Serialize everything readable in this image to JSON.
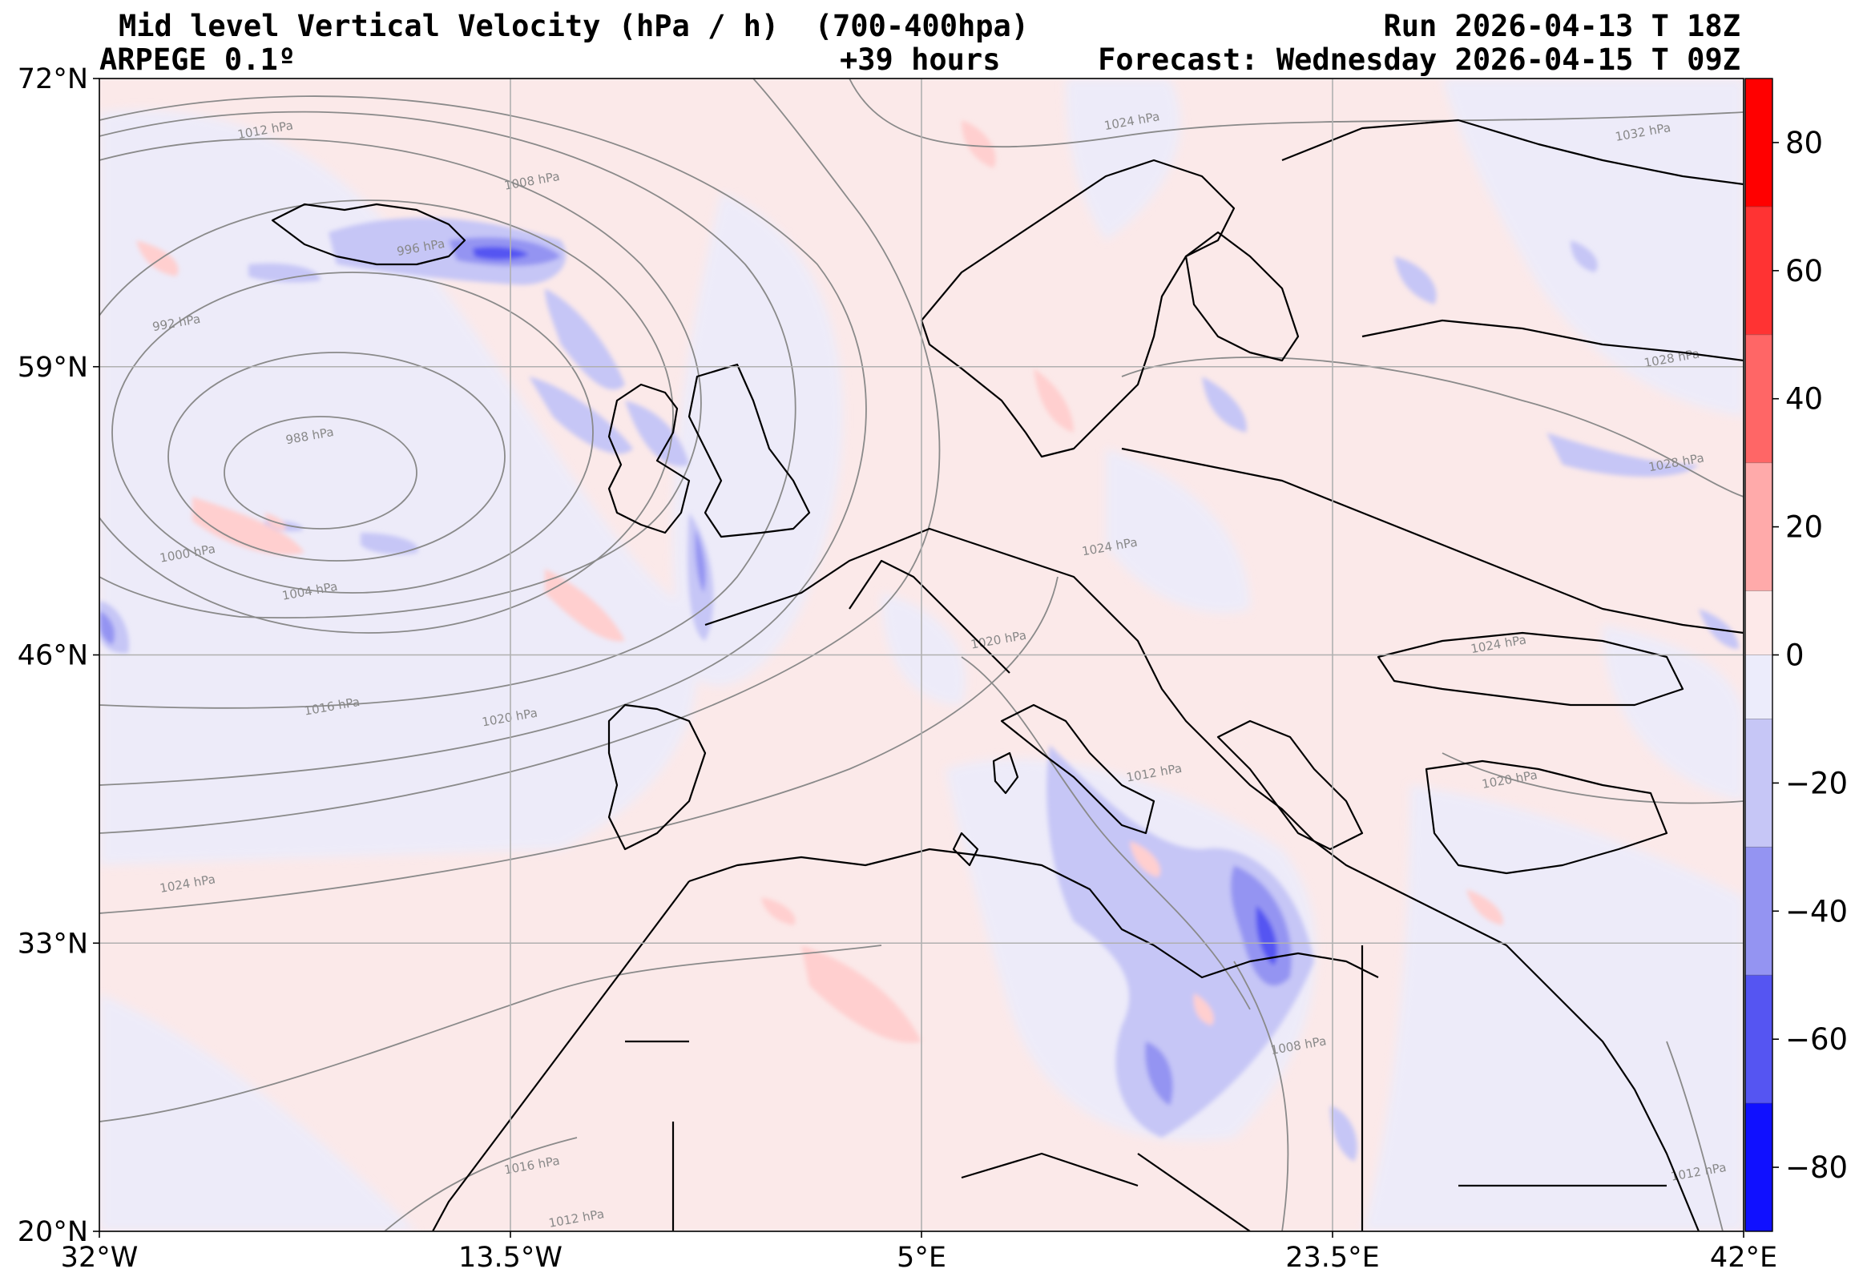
{
  "header": {
    "title": "Mid level Vertical Velocity (hPa / h)  (700-400hpa)",
    "model": "ARPEGE 0.1º",
    "lead": "+39 hours",
    "run": "Run 2026-04-13 T 18Z",
    "forecast": "Forecast: Wednesday 2026-04-15 T 09Z"
  },
  "map": {
    "lon_range": [
      -32,
      42
    ],
    "lat_range": [
      20,
      72
    ],
    "lon_ticks": [
      {
        "value": -32,
        "label": "32°W"
      },
      {
        "value": -13.5,
        "label": "13.5°W"
      },
      {
        "value": 5,
        "label": "5°E"
      },
      {
        "value": 23.5,
        "label": "23.5°E"
      },
      {
        "value": 42,
        "label": "42°E"
      }
    ],
    "lat_ticks": [
      {
        "value": 72,
        "label": "72°N"
      },
      {
        "value": 59,
        "label": "59°N"
      },
      {
        "value": 46,
        "label": "46°N"
      },
      {
        "value": 33,
        "label": "33°N"
      },
      {
        "value": 20,
        "label": "20°N"
      }
    ],
    "background_color": "#fbe9e9",
    "isobar_labels": [
      {
        "text": "1012 hPa",
        "lon": -24.5,
        "lat": 69.5
      },
      {
        "text": "1008 hPa",
        "lon": -12.5,
        "lat": 67.2
      },
      {
        "text": "996 hPa",
        "lon": -17.5,
        "lat": 64.2
      },
      {
        "text": "992 hPa",
        "lon": -28.5,
        "lat": 60.8
      },
      {
        "text": "988 hPa",
        "lon": -22.5,
        "lat": 55.7
      },
      {
        "text": "1000 hPa",
        "lon": -28,
        "lat": 50.4
      },
      {
        "text": "1004 hPa",
        "lon": -22.5,
        "lat": 48.7
      },
      {
        "text": "1016 hPa",
        "lon": -21.5,
        "lat": 43.5
      },
      {
        "text": "1020 hPa",
        "lon": -13.5,
        "lat": 43
      },
      {
        "text": "1024 hPa",
        "lon": -28,
        "lat": 35.5
      },
      {
        "text": "1024 hPa",
        "lon": 14.5,
        "lat": 69.9
      },
      {
        "text": "1032 hPa",
        "lon": 37.5,
        "lat": 69.4
      },
      {
        "text": "1028 hPa",
        "lon": 38.8,
        "lat": 59.2
      },
      {
        "text": "1028 hPa",
        "lon": 39,
        "lat": 54.5
      },
      {
        "text": "1024 hPa",
        "lon": 13.5,
        "lat": 50.7
      },
      {
        "text": "1024 hPa",
        "lon": 31,
        "lat": 46.3
      },
      {
        "text": "1020 hPa",
        "lon": 31.5,
        "lat": 40.2
      },
      {
        "text": "1020 hPa",
        "lon": 8.5,
        "lat": 46.5
      },
      {
        "text": "1012 hPa",
        "lon": 15.5,
        "lat": 40.5
      },
      {
        "text": "1008 hPa",
        "lon": 22,
        "lat": 28.2
      },
      {
        "text": "1016 hPa",
        "lon": -12.5,
        "lat": 22.8
      },
      {
        "text": "1012 hPa",
        "lon": -10.5,
        "lat": 20.4
      },
      {
        "text": "1012 hPa",
        "lon": 40,
        "lat": 22.5
      }
    ]
  },
  "colorbar": {
    "min": -90,
    "max": 90,
    "ticks": [
      {
        "value": 80,
        "label": "80"
      },
      {
        "value": 60,
        "label": "60"
      },
      {
        "value": 40,
        "label": "40"
      },
      {
        "value": 20,
        "label": "20"
      },
      {
        "value": 0,
        "label": "0"
      },
      {
        "value": -20,
        "label": "−20"
      },
      {
        "value": -40,
        "label": "−40"
      },
      {
        "value": -60,
        "label": "−60"
      },
      {
        "value": -80,
        "label": "−80"
      }
    ],
    "bins": [
      {
        "from": 70,
        "to": 90,
        "color": "#ff0000"
      },
      {
        "from": 50,
        "to": 70,
        "color": "#ff3333"
      },
      {
        "from": 30,
        "to": 50,
        "color": "#ff6666"
      },
      {
        "from": 10,
        "to": 30,
        "color": "#ffaaaa"
      },
      {
        "from": 0,
        "to": 10,
        "color": "#fde9e9"
      },
      {
        "from": -10,
        "to": 0,
        "color": "#ececfb"
      },
      {
        "from": -30,
        "to": -10,
        "color": "#c6c6f6"
      },
      {
        "from": -50,
        "to": -30,
        "color": "#9494f2"
      },
      {
        "from": -70,
        "to": -50,
        "color": "#5555f2"
      },
      {
        "from": -90,
        "to": -70,
        "color": "#1010ff"
      }
    ]
  }
}
